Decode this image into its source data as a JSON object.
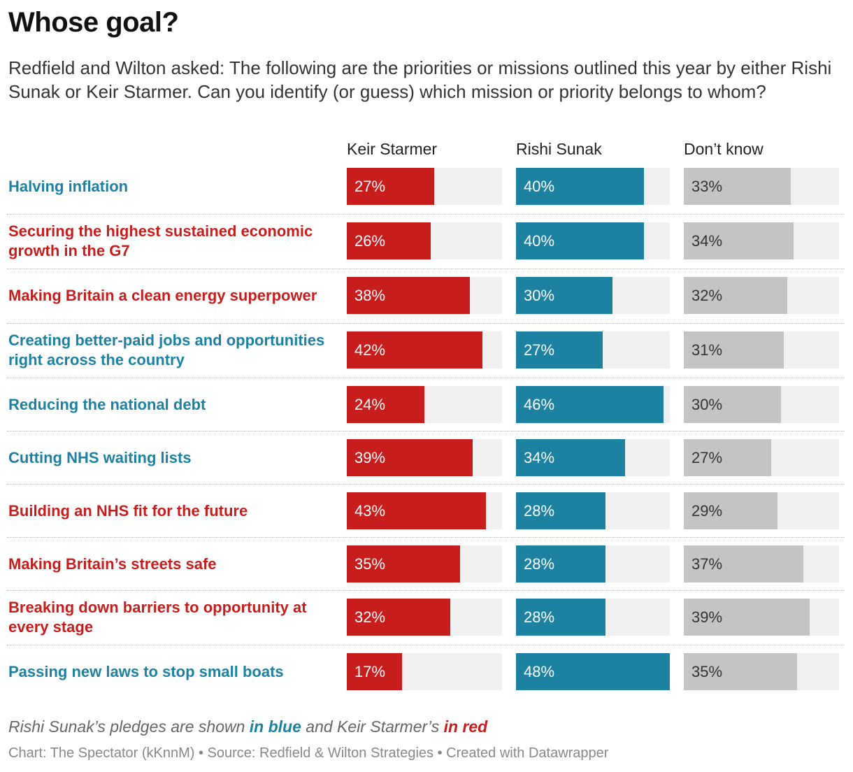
{
  "title": "Whose goal?",
  "subtitle": "Redfield and Wilton asked: The following are the priorities or missions outlined this year by either Rishi Sunak or Keir Starmer. Can you identify (or guess) which mission or priority belongs to whom?",
  "columns": [
    "Keir Starmer",
    "Rishi Sunak",
    "Don’t know"
  ],
  "colors": {
    "starmer": "#c71e1d",
    "sunak": "#1d81a2",
    "dontknow": "#c4c4c4",
    "track": "#f0f0f0",
    "starmer_text": "#ffffff",
    "sunak_text": "#ffffff",
    "dontknow_text": "#333333"
  },
  "chart_data": {
    "type": "bar",
    "orientation": "horizontal",
    "categories": [
      "Halving inflation",
      "Securing the highest sustained economic growth in the G7",
      "Making Britain a clean energy superpower",
      "Creating better-paid jobs and opportunities right across the country",
      "Reducing the national debt",
      "Cutting NHS waiting lists",
      "Building an NHS fit for the future",
      "Making Britain’s streets safe",
      "Breaking down barriers to opportunity at every stage",
      "Passing new laws to stop small boats"
    ],
    "category_owner": [
      "sunak",
      "starmer",
      "starmer",
      "sunak",
      "sunak",
      "sunak",
      "starmer",
      "starmer",
      "starmer",
      "sunak"
    ],
    "series": [
      {
        "name": "Keir Starmer",
        "key": "starmer",
        "values": [
          27,
          26,
          38,
          42,
          24,
          39,
          43,
          35,
          32,
          17
        ]
      },
      {
        "name": "Rishi Sunak",
        "key": "sunak",
        "values": [
          40,
          40,
          30,
          27,
          46,
          34,
          28,
          28,
          28,
          48
        ]
      },
      {
        "name": "Don’t know",
        "key": "dontknow",
        "values": [
          33,
          34,
          32,
          31,
          30,
          27,
          29,
          37,
          39,
          35
        ]
      }
    ],
    "xlim": [
      0,
      48
    ],
    "unit": "%"
  },
  "note": {
    "part1": "Rishi Sunak’s pledges are shown ",
    "blue": "in blue",
    "part2": " and Keir Starmer’s ",
    "red": "in red"
  },
  "credit": "Chart: The Spectator (kKnnM) • Source: Redfield & Wilton Strategies • Created with Datawrapper"
}
